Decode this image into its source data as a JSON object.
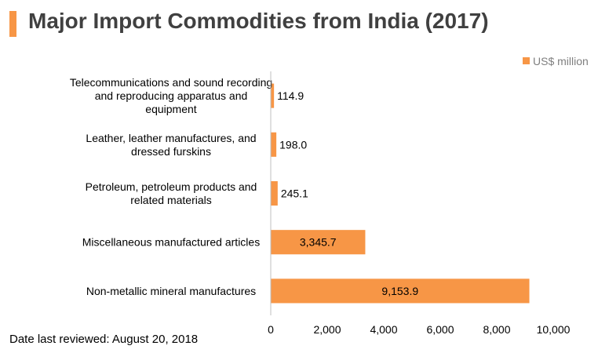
{
  "header": {
    "title": "Major Import Commodities from India (2017)"
  },
  "footer": {
    "text": "Date last reviewed: August 20, 2018"
  },
  "colors": {
    "bar": "#f79646",
    "accent": "#f79646",
    "axis": "#bfbfbf"
  },
  "chart_data": {
    "type": "bar",
    "orientation": "horizontal",
    "title": "",
    "xlabel": "",
    "ylabel": "",
    "categories": [
      "Telecommunications and sound recording and reproducing apparatus and equipment",
      "Leather, leather manufactures, and dressed furskins",
      "Petroleum, petroleum products and related materials",
      "Miscellaneous manufactured articles",
      "Non-metallic mineral manufactures"
    ],
    "series": [
      {
        "name": "US$ million",
        "values": [
          114.9,
          198.0,
          245.1,
          3345.7,
          9153.9
        ]
      }
    ],
    "data_labels": [
      "114.9",
      "198.0",
      "245.1",
      "3,345.7",
      "9,153.9"
    ],
    "xlim": [
      0,
      10000
    ],
    "xticks": [
      0,
      2000,
      4000,
      6000,
      8000,
      10000
    ],
    "xtick_labels": [
      "0",
      "2,000",
      "4,000",
      "6,000",
      "8,000",
      "10,000"
    ],
    "grid": false,
    "legend": "top-right"
  }
}
